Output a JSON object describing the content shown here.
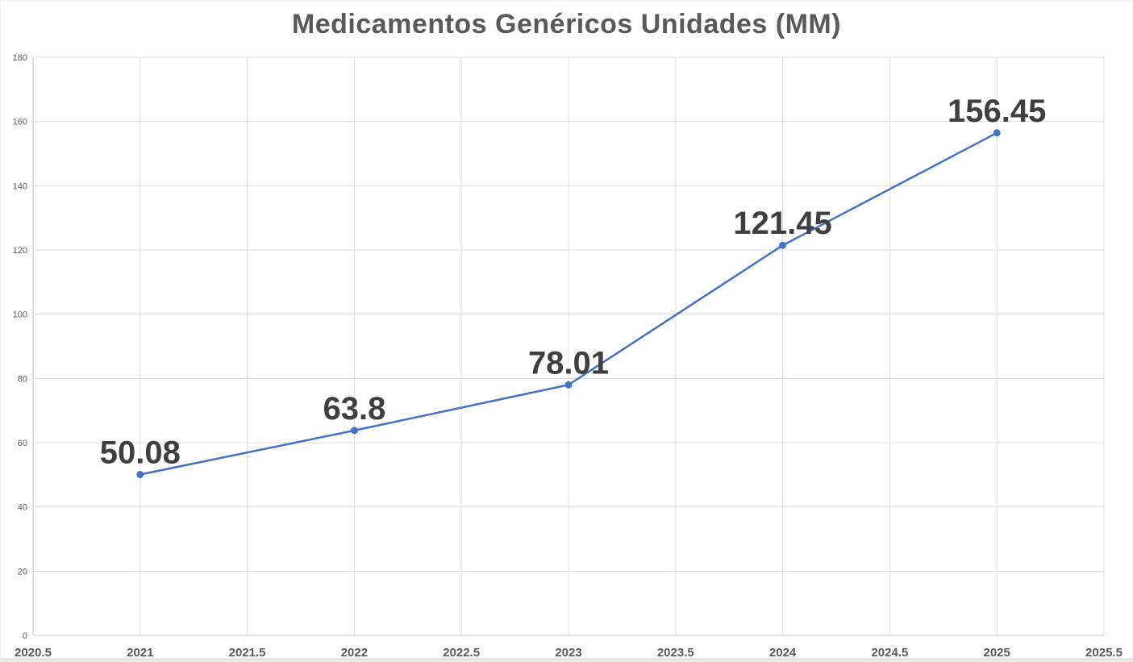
{
  "chart_data": {
    "type": "line",
    "title": "Medicamentos Genéricos Unidades (MM)",
    "x": [
      2021,
      2022,
      2023,
      2024,
      2025
    ],
    "values": [
      50.08,
      63.8,
      78.01,
      121.45,
      156.45
    ],
    "point_labels": [
      "50.08",
      "63.8",
      "78.01",
      "121.45",
      "156.45"
    ],
    "series_name": "Medicamentos Genéricos Unidades (MM)",
    "xlabel": "",
    "ylabel": "",
    "xlim": [
      2020.5,
      2025.5
    ],
    "ylim": [
      0,
      180
    ],
    "x_ticks": [
      2020.5,
      2021,
      2021.5,
      2022,
      2022.5,
      2023,
      2023.5,
      2024,
      2024.5,
      2025,
      2025.5
    ],
    "x_tick_labels": [
      "2020.5",
      "2021",
      "2021.5",
      "2022",
      "2022.5",
      "2023",
      "2023.5",
      "2024",
      "2024.5",
      "2025",
      "2025.5"
    ],
    "y_ticks": [
      0,
      20,
      40,
      60,
      80,
      100,
      120,
      140,
      160,
      180
    ],
    "y_tick_labels": [
      "0",
      "20",
      "40",
      "60",
      "80",
      "100",
      "120",
      "140",
      "160",
      "180"
    ],
    "grid": true,
    "legend": "none",
    "colors": {
      "line": "#4472C4",
      "marker": "#4472C4",
      "data_label": "#3F3F3F",
      "title": "#595959",
      "axis_text": "#595959",
      "gridline": "#DCDCDC",
      "axis_line": "#C9C9C9",
      "background": "#FFFFFF"
    }
  }
}
